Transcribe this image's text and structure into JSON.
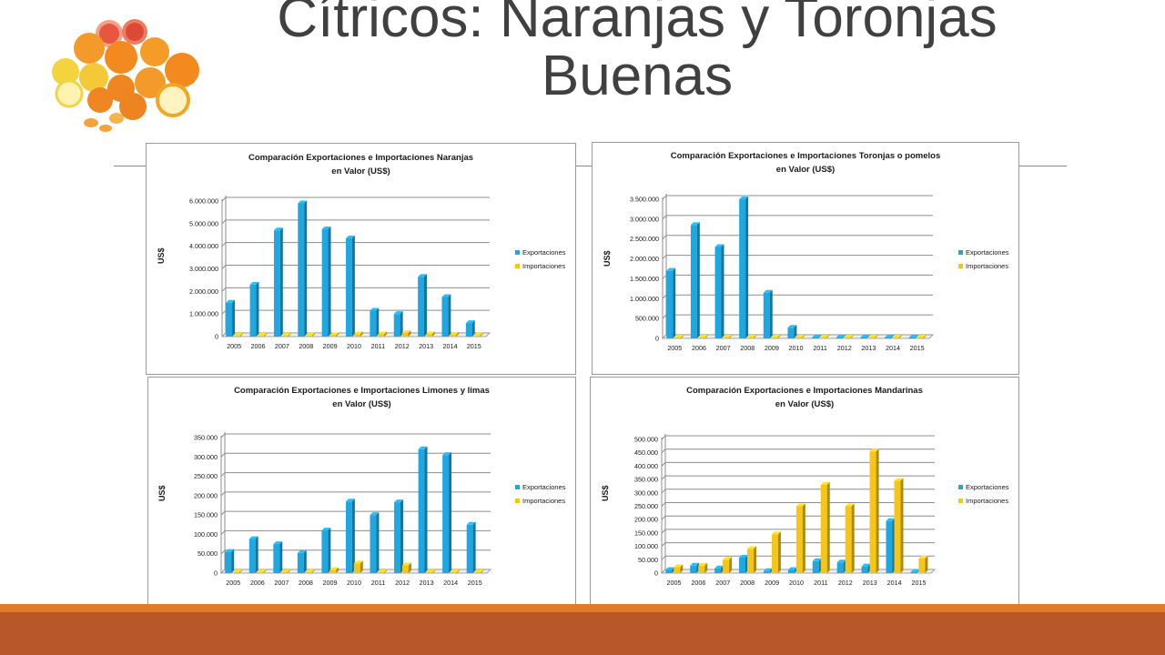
{
  "slide": {
    "title_line1": "Cítricos: Naranjas y Toronjas",
    "title_line2": "Buenas"
  },
  "colors": {
    "export": "#1ea7e0",
    "import": "#f5c518",
    "footer_light": "#e07b2a",
    "footer_dark": "#b8582a",
    "title": "#404040"
  },
  "chart_data": [
    {
      "type": "bar",
      "title_line1": "Comparación Exportaciones e Importaciones Naranjas",
      "title_line2": "en Valor (US$)",
      "ylabel": "US$",
      "categories": [
        "2005",
        "2006",
        "2007",
        "2008",
        "2009",
        "2010",
        "2011",
        "2012",
        "2013",
        "2014",
        "2015"
      ],
      "series": [
        {
          "name": "Exportaciones",
          "values": [
            1500000,
            2300000,
            4700000,
            5900000,
            4750000,
            4350000,
            1150000,
            1000000,
            2650000,
            1750000,
            600000
          ]
        },
        {
          "name": "Importaciones",
          "values": [
            30000,
            40000,
            40000,
            50000,
            60000,
            100000,
            100000,
            150000,
            100000,
            80000,
            50000
          ]
        }
      ],
      "ylim": [
        0,
        6000000
      ],
      "yticks": [
        "0",
        "1.000.000",
        "2.000.000",
        "3.000.000",
        "4.000.000",
        "5.000.000",
        "6.000.000"
      ],
      "legend": "right",
      "grid": true
    },
    {
      "type": "bar",
      "title_line1": "Comparación Exportaciones e Importaciones Toronjas o pomelos",
      "title_line2": "en Valor (US$)",
      "ylabel": "US$",
      "categories": [
        "2005",
        "2006",
        "2007",
        "2008",
        "2009",
        "2010",
        "2011",
        "2012",
        "2013",
        "2014",
        "2015"
      ],
      "series": [
        {
          "name": "Exportaciones",
          "values": [
            1700000,
            2850000,
            2300000,
            3500000,
            1150000,
            270000,
            20000,
            15000,
            15000,
            5000,
            5000
          ]
        },
        {
          "name": "Importaciones",
          "values": [
            10000,
            10000,
            10000,
            10000,
            10000,
            20000,
            10000,
            10000,
            10000,
            10000,
            10000
          ]
        }
      ],
      "ylim": [
        0,
        3500000
      ],
      "yticks": [
        "0",
        "500.000",
        "1.000.000",
        "1.500.000",
        "2.000.000",
        "2.500.000",
        "3.000.000",
        "3.500.000"
      ],
      "legend": "right",
      "grid": true
    },
    {
      "type": "bar",
      "title_line1": "Comparación Exportaciones e Importaciones Limones y limas",
      "title_line2": "en Valor (US$)",
      "ylabel": "US$",
      "categories": [
        "2005",
        "2006",
        "2007",
        "2008",
        "2009",
        "2010",
        "2011",
        "2012",
        "2013",
        "2014",
        "2015"
      ],
      "series": [
        {
          "name": "Exportaciones",
          "values": [
            55000,
            88000,
            75000,
            52000,
            110000,
            185000,
            150000,
            183000,
            320000,
            305000,
            125000
          ]
        },
        {
          "name": "Importaciones",
          "values": [
            0,
            0,
            0,
            0,
            8000,
            25000,
            0,
            20000,
            0,
            0,
            0
          ]
        }
      ],
      "ylim": [
        0,
        350000
      ],
      "yticks": [
        "0",
        "50.000",
        "100.000",
        "150.000",
        "200.000",
        "250.000",
        "300.000",
        "350.000"
      ],
      "legend": "right",
      "grid": true
    },
    {
      "type": "bar",
      "title_line1": "Comparación Exportaciones e Importaciones Mandarinas",
      "title_line2": "en Valor (US$)",
      "ylabel": "US$",
      "categories": [
        "2005",
        "2006",
        "2007",
        "2008",
        "2009",
        "2010",
        "2011",
        "2012",
        "2013",
        "2014",
        "2015"
      ],
      "series": [
        {
          "name": "Exportaciones",
          "values": [
            12000,
            28000,
            18000,
            58000,
            8000,
            12000,
            45000,
            40000,
            25000,
            195000,
            2000
          ]
        },
        {
          "name": "Importaciones",
          "values": [
            22000,
            28000,
            50000,
            90000,
            145000,
            250000,
            330000,
            250000,
            455000,
            345000,
            55000
          ]
        }
      ],
      "ylim": [
        0,
        500000
      ],
      "yticks": [
        "0",
        "50.000",
        "100.000",
        "150.000",
        "200.000",
        "250.000",
        "300.000",
        "350.000",
        "400.000",
        "450.000",
        "500.000"
      ],
      "legend": "right",
      "grid": true
    }
  ]
}
